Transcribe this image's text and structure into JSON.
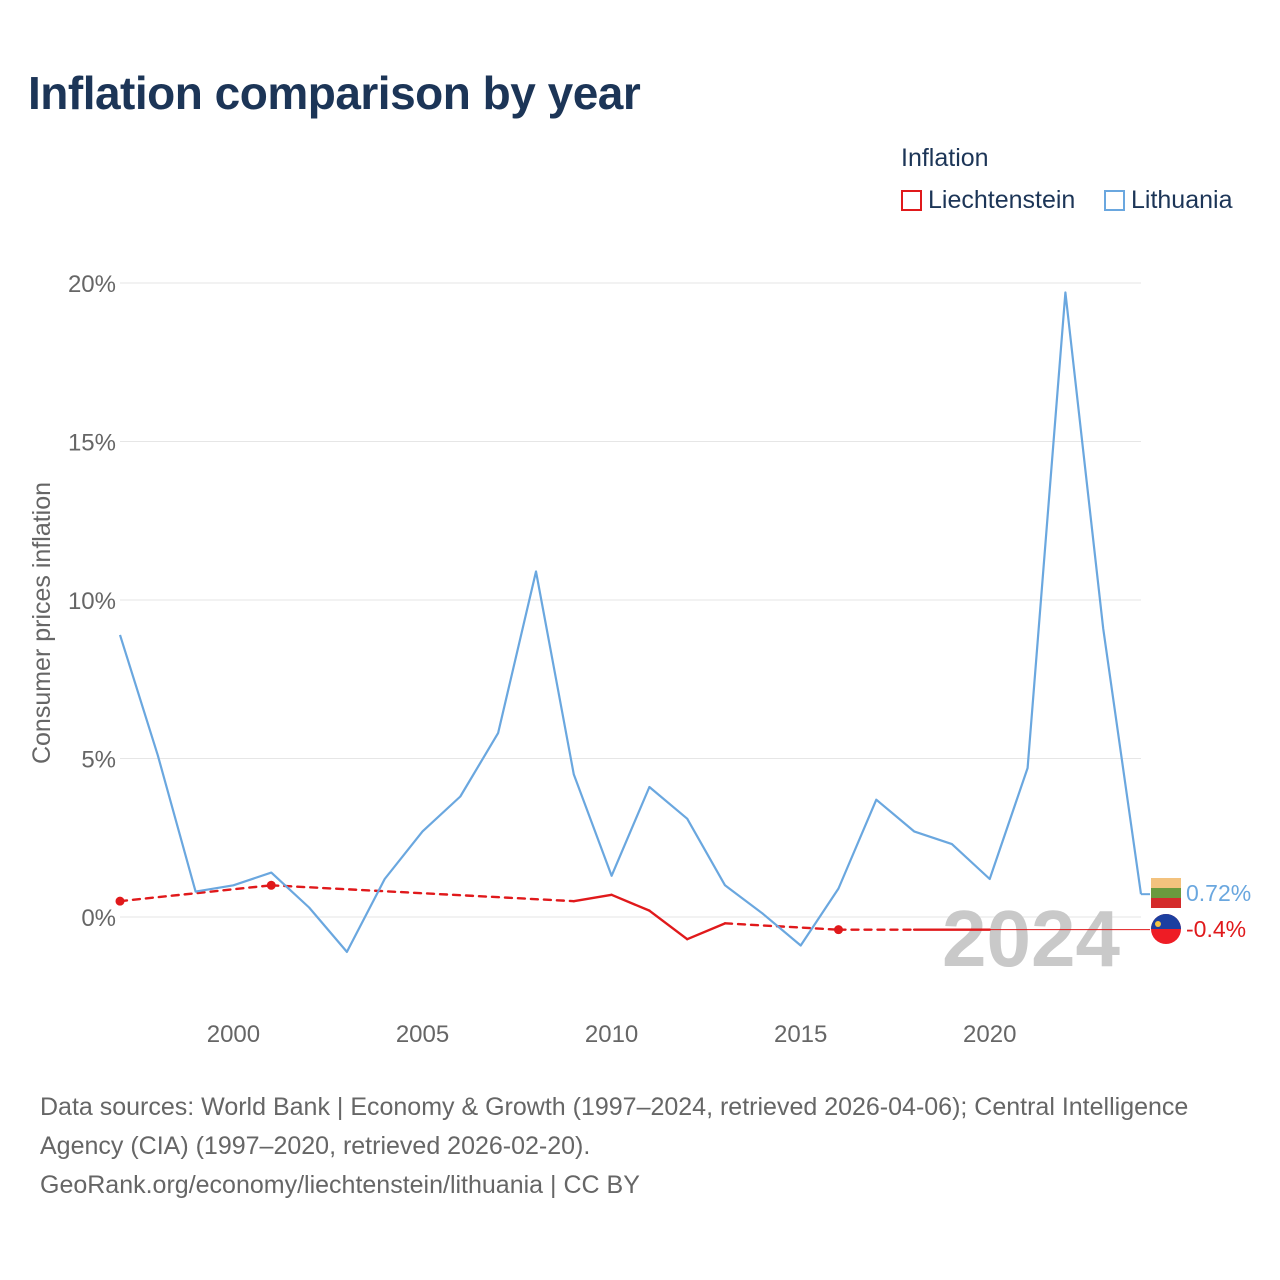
{
  "title": "Inflation comparison by year",
  "legend": {
    "title": "Inflation",
    "items": [
      {
        "label": "Liechtenstein",
        "color": "#e0191b"
      },
      {
        "label": "Lithuania",
        "color": "#6aa7df"
      }
    ]
  },
  "current_year": "2024",
  "end_labels": {
    "lithuania": "0.72%",
    "liechtenstein": "-0.4%"
  },
  "source": {
    "line1": "Data sources: World Bank | Economy & Growth (1997–2024, retrieved 2026-04-06); Central Intelligence Agency (CIA) (1997–2020, retrieved 2026-02-20).",
    "line2": "GeoRank.org/economy/liechtenstein/lithuania | CC BY"
  },
  "chart_data": {
    "type": "line",
    "ylabel": "Consumer prices inflation",
    "xlabel": "",
    "xlim": [
      1997,
      2024
    ],
    "ylim": [
      -2.9,
      20.6
    ],
    "yticks": [
      {
        "value": 0,
        "label": "0%"
      },
      {
        "value": 5,
        "label": "5%"
      },
      {
        "value": 10,
        "label": "10%"
      },
      {
        "value": 15,
        "label": "15%"
      },
      {
        "value": 20,
        "label": "20%"
      }
    ],
    "xticks": [
      {
        "value": 2000,
        "label": "2000"
      },
      {
        "value": 2005,
        "label": "2005"
      },
      {
        "value": 2010,
        "label": "2010"
      },
      {
        "value": 2015,
        "label": "2015"
      },
      {
        "value": 2020,
        "label": "2020"
      }
    ],
    "series": [
      {
        "name": "Lithuania",
        "color": "#6aa7df",
        "x": [
          1997,
          1998,
          1999,
          2000,
          2001,
          2002,
          2003,
          2004,
          2005,
          2006,
          2007,
          2008,
          2009,
          2010,
          2011,
          2012,
          2013,
          2014,
          2015,
          2016,
          2017,
          2018,
          2019,
          2020,
          2021,
          2022,
          2023,
          2024
        ],
        "values": [
          8.9,
          5.1,
          0.8,
          1.0,
          1.4,
          0.3,
          -1.1,
          1.2,
          2.7,
          3.8,
          5.8,
          10.9,
          4.5,
          1.3,
          4.1,
          3.1,
          1.0,
          0.1,
          -0.9,
          0.9,
          3.7,
          2.7,
          2.3,
          1.2,
          4.7,
          19.7,
          9.1,
          0.72
        ]
      },
      {
        "name": "Liechtenstein",
        "color": "#e0191b",
        "x": [
          1997,
          2001,
          2009,
          2010,
          2011,
          2012,
          2013,
          2016,
          2018,
          2020
        ],
        "values": [
          0.5,
          1.0,
          0.5,
          0.7,
          0.2,
          -0.7,
          -0.2,
          -0.4,
          -0.4,
          -0.4
        ],
        "observed": [
          true,
          true,
          true,
          true,
          true,
          true,
          true,
          true,
          true,
          true
        ],
        "dashed_segments": [
          [
            1997,
            2001
          ],
          [
            2001,
            2009
          ],
          [
            2013,
            2016
          ],
          [
            2016,
            2018
          ]
        ],
        "markers": [
          1997,
          2001,
          2016
        ],
        "last_value": -0.4
      }
    ]
  }
}
